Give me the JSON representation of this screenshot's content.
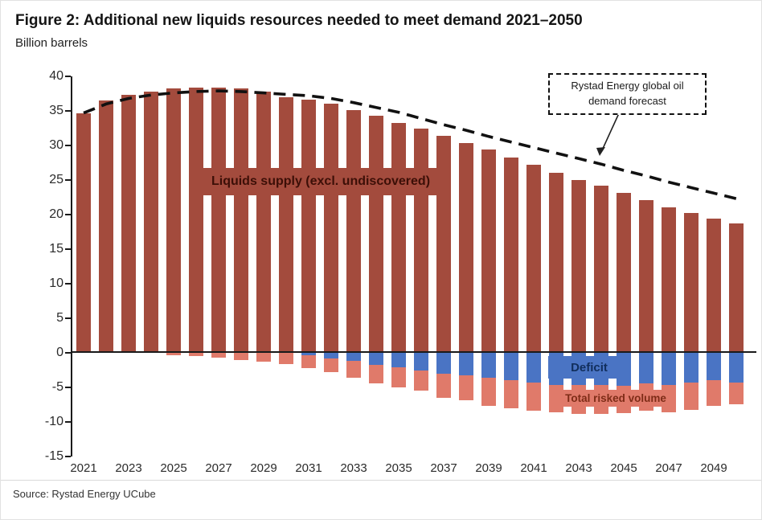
{
  "header": {
    "title": "Figure 2: Additional new liquids resources needed to meet demand 2021–2050",
    "subtitle": "Billion barrels"
  },
  "source": "Source: Rystad Energy UCube",
  "labels": {
    "supply": "Liquids supply (excl. undiscovered)",
    "deficit": "Deficit",
    "risked": "Total risked volume",
    "forecast_line1": "Rystad Energy global oil",
    "forecast_line2": "demand forecast"
  },
  "colors": {
    "supply_bar": "#a34b3d",
    "deficit_bar": "#4a74c4",
    "risked_bar": "#e07a6a",
    "demand_line": "#111111"
  },
  "chart_data": {
    "type": "bar",
    "title": "Additional new liquids resources needed to meet demand 2021–2050",
    "ylabel": "Billion barrels",
    "ylim": [
      -15,
      40
    ],
    "yticks": [
      40,
      35,
      30,
      25,
      20,
      15,
      10,
      5,
      0,
      -5,
      -10,
      -15
    ],
    "xticks": [
      2021,
      2023,
      2025,
      2027,
      2029,
      2031,
      2033,
      2035,
      2037,
      2039,
      2041,
      2043,
      2045,
      2047,
      2049
    ],
    "years": [
      2021,
      2022,
      2023,
      2024,
      2025,
      2026,
      2027,
      2028,
      2029,
      2030,
      2031,
      2032,
      2033,
      2034,
      2035,
      2036,
      2037,
      2038,
      2039,
      2040,
      2041,
      2042,
      2043,
      2044,
      2045,
      2046,
      2047,
      2048,
      2049,
      2050
    ],
    "series": [
      {
        "name": "Liquids supply (excl. undiscovered)",
        "type": "bar",
        "values": [
          34.7,
          36.5,
          37.3,
          37.8,
          38.2,
          38.4,
          38.4,
          38.2,
          37.8,
          37.0,
          36.6,
          36.0,
          35.1,
          34.3,
          33.2,
          32.5,
          31.4,
          30.4,
          29.4,
          28.2,
          27.2,
          26.1,
          25.0,
          24.2,
          23.1,
          22.1,
          21.1,
          20.2,
          19.4,
          18.7
        ]
      },
      {
        "name": "Deficit",
        "type": "bar",
        "values": [
          0,
          0,
          0,
          0,
          0,
          0,
          0,
          0,
          0,
          0,
          -0.4,
          -0.8,
          -1.2,
          -1.7,
          -2.1,
          -2.5,
          -3.0,
          -3.3,
          -3.6,
          -4.0,
          -4.3,
          -4.6,
          -4.7,
          -4.7,
          -4.8,
          -4.4,
          -4.6,
          -4.3,
          -4.0,
          -4.3
        ]
      },
      {
        "name": "Total risked volume",
        "type": "bar",
        "values": [
          0,
          0,
          0,
          0,
          -0.3,
          -0.5,
          -0.7,
          -1.0,
          -1.3,
          -1.6,
          -1.8,
          -2.0,
          -2.4,
          -2.7,
          -2.9,
          -3.0,
          -3.5,
          -3.6,
          -4.1,
          -4.0,
          -4.1,
          -4.0,
          -4.1,
          -4.1,
          -3.9,
          -4.0,
          -4.0,
          -3.9,
          -3.7,
          -3.2
        ]
      },
      {
        "name": "Rystad Energy global oil demand forecast",
        "type": "dashed-line",
        "values": [
          34.7,
          36.0,
          36.8,
          37.3,
          37.6,
          37.8,
          37.9,
          37.8,
          37.6,
          37.4,
          37.2,
          36.8,
          36.2,
          35.5,
          34.8,
          33.9,
          33.0,
          32.2,
          31.3,
          30.5,
          29.7,
          28.9,
          28.1,
          27.3,
          26.4,
          25.6,
          24.7,
          23.9,
          23.1,
          22.3
        ]
      }
    ],
    "legend_position": "annotation-box-top-right",
    "grid": false
  }
}
